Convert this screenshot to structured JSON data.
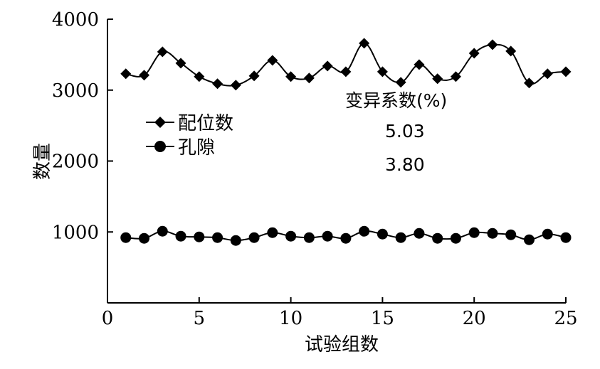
{
  "chart_data": {
    "type": "line",
    "xlabel": "试验组数",
    "ylabel": "数量",
    "xlim": [
      0,
      25
    ],
    "ylim": [
      0,
      4000
    ],
    "xticks": [
      "0",
      "5",
      "10",
      "15",
      "20",
      "25"
    ],
    "yticks": [
      "1000",
      "2000",
      "3000",
      "4000"
    ],
    "grid": false,
    "legend_position": "left",
    "x": [
      1,
      2,
      3,
      4,
      5,
      6,
      7,
      8,
      9,
      10,
      11,
      12,
      13,
      14,
      15,
      16,
      17,
      18,
      19,
      20,
      21,
      22,
      23,
      24,
      25
    ],
    "series": [
      {
        "name": "配位数",
        "marker": "diamond",
        "values": [
          3230,
          3210,
          3540,
          3380,
          3190,
          3090,
          3070,
          3200,
          3420,
          3190,
          3170,
          3340,
          3260,
          3660,
          3260,
          3110,
          3360,
          3160,
          3190,
          3520,
          3640,
          3550,
          3100,
          3230,
          3260
        ]
      },
      {
        "name": "孔隙",
        "marker": "circle",
        "values": [
          920,
          910,
          1010,
          940,
          930,
          920,
          880,
          920,
          990,
          940,
          920,
          940,
          910,
          1010,
          970,
          920,
          980,
          910,
          910,
          990,
          980,
          960,
          890,
          970,
          920
        ]
      }
    ],
    "annotation": {
      "title": "变异系数(%)",
      "values": [
        "5.03",
        "3.80"
      ]
    }
  }
}
